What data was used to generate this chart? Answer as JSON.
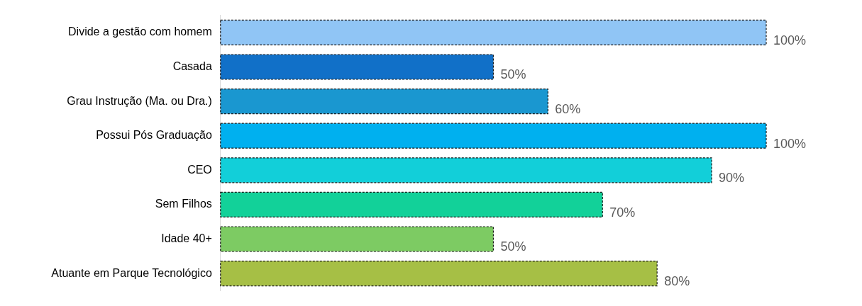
{
  "chart_data": {
    "type": "bar",
    "orientation": "horizontal",
    "categories": [
      "Divide a gestão com homem",
      "Casada",
      "Grau Instrução (Ma. ou Dra.)",
      "Possui Pós Graduação",
      "CEO",
      "Sem Filhos",
      "Idade 40+",
      "Atuante em Parque Tecnológico"
    ],
    "values": [
      100,
      50,
      60,
      100,
      90,
      70,
      50,
      80
    ],
    "colors": [
      "#90c5f5",
      "#1170c8",
      "#1a97d0",
      "#00b0ef",
      "#12cfd9",
      "#12d199",
      "#7dcb63",
      "#a6bf45"
    ],
    "value_labels": [
      "100%",
      "50%",
      "60%",
      "100%",
      "90%",
      "70%",
      "50%",
      "80%"
    ],
    "tick_labels": "y"
  }
}
